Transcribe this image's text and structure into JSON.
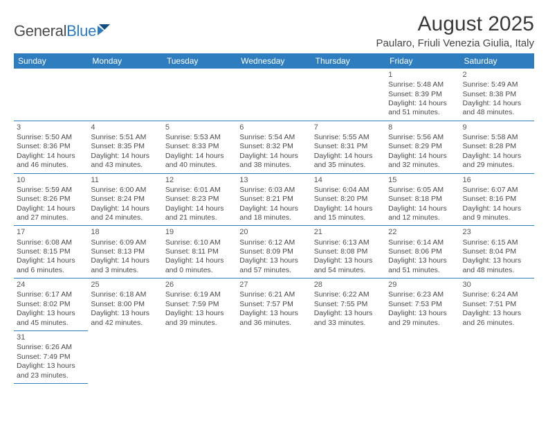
{
  "brand": {
    "name_part1": "General",
    "name_part2": "Blue"
  },
  "title": "August 2025",
  "location": "Paularo, Friuli Venezia Giulia, Italy",
  "colors": {
    "header_bg": "#2e7ebf",
    "header_fg": "#ffffff",
    "border": "#2e7ebf"
  },
  "day_headers": [
    "Sunday",
    "Monday",
    "Tuesday",
    "Wednesday",
    "Thursday",
    "Friday",
    "Saturday"
  ],
  "weeks": [
    [
      null,
      null,
      null,
      null,
      null,
      {
        "n": "1",
        "sr": "Sunrise: 5:48 AM",
        "ss": "Sunset: 8:39 PM",
        "d1": "Daylight: 14 hours",
        "d2": "and 51 minutes."
      },
      {
        "n": "2",
        "sr": "Sunrise: 5:49 AM",
        "ss": "Sunset: 8:38 PM",
        "d1": "Daylight: 14 hours",
        "d2": "and 48 minutes."
      }
    ],
    [
      {
        "n": "3",
        "sr": "Sunrise: 5:50 AM",
        "ss": "Sunset: 8:36 PM",
        "d1": "Daylight: 14 hours",
        "d2": "and 46 minutes."
      },
      {
        "n": "4",
        "sr": "Sunrise: 5:51 AM",
        "ss": "Sunset: 8:35 PM",
        "d1": "Daylight: 14 hours",
        "d2": "and 43 minutes."
      },
      {
        "n": "5",
        "sr": "Sunrise: 5:53 AM",
        "ss": "Sunset: 8:33 PM",
        "d1": "Daylight: 14 hours",
        "d2": "and 40 minutes."
      },
      {
        "n": "6",
        "sr": "Sunrise: 5:54 AM",
        "ss": "Sunset: 8:32 PM",
        "d1": "Daylight: 14 hours",
        "d2": "and 38 minutes."
      },
      {
        "n": "7",
        "sr": "Sunrise: 5:55 AM",
        "ss": "Sunset: 8:31 PM",
        "d1": "Daylight: 14 hours",
        "d2": "and 35 minutes."
      },
      {
        "n": "8",
        "sr": "Sunrise: 5:56 AM",
        "ss": "Sunset: 8:29 PM",
        "d1": "Daylight: 14 hours",
        "d2": "and 32 minutes."
      },
      {
        "n": "9",
        "sr": "Sunrise: 5:58 AM",
        "ss": "Sunset: 8:28 PM",
        "d1": "Daylight: 14 hours",
        "d2": "and 29 minutes."
      }
    ],
    [
      {
        "n": "10",
        "sr": "Sunrise: 5:59 AM",
        "ss": "Sunset: 8:26 PM",
        "d1": "Daylight: 14 hours",
        "d2": "and 27 minutes."
      },
      {
        "n": "11",
        "sr": "Sunrise: 6:00 AM",
        "ss": "Sunset: 8:24 PM",
        "d1": "Daylight: 14 hours",
        "d2": "and 24 minutes."
      },
      {
        "n": "12",
        "sr": "Sunrise: 6:01 AM",
        "ss": "Sunset: 8:23 PM",
        "d1": "Daylight: 14 hours",
        "d2": "and 21 minutes."
      },
      {
        "n": "13",
        "sr": "Sunrise: 6:03 AM",
        "ss": "Sunset: 8:21 PM",
        "d1": "Daylight: 14 hours",
        "d2": "and 18 minutes."
      },
      {
        "n": "14",
        "sr": "Sunrise: 6:04 AM",
        "ss": "Sunset: 8:20 PM",
        "d1": "Daylight: 14 hours",
        "d2": "and 15 minutes."
      },
      {
        "n": "15",
        "sr": "Sunrise: 6:05 AM",
        "ss": "Sunset: 8:18 PM",
        "d1": "Daylight: 14 hours",
        "d2": "and 12 minutes."
      },
      {
        "n": "16",
        "sr": "Sunrise: 6:07 AM",
        "ss": "Sunset: 8:16 PM",
        "d1": "Daylight: 14 hours",
        "d2": "and 9 minutes."
      }
    ],
    [
      {
        "n": "17",
        "sr": "Sunrise: 6:08 AM",
        "ss": "Sunset: 8:15 PM",
        "d1": "Daylight: 14 hours",
        "d2": "and 6 minutes."
      },
      {
        "n": "18",
        "sr": "Sunrise: 6:09 AM",
        "ss": "Sunset: 8:13 PM",
        "d1": "Daylight: 14 hours",
        "d2": "and 3 minutes."
      },
      {
        "n": "19",
        "sr": "Sunrise: 6:10 AM",
        "ss": "Sunset: 8:11 PM",
        "d1": "Daylight: 14 hours",
        "d2": "and 0 minutes."
      },
      {
        "n": "20",
        "sr": "Sunrise: 6:12 AM",
        "ss": "Sunset: 8:09 PM",
        "d1": "Daylight: 13 hours",
        "d2": "and 57 minutes."
      },
      {
        "n": "21",
        "sr": "Sunrise: 6:13 AM",
        "ss": "Sunset: 8:08 PM",
        "d1": "Daylight: 13 hours",
        "d2": "and 54 minutes."
      },
      {
        "n": "22",
        "sr": "Sunrise: 6:14 AM",
        "ss": "Sunset: 8:06 PM",
        "d1": "Daylight: 13 hours",
        "d2": "and 51 minutes."
      },
      {
        "n": "23",
        "sr": "Sunrise: 6:15 AM",
        "ss": "Sunset: 8:04 PM",
        "d1": "Daylight: 13 hours",
        "d2": "and 48 minutes."
      }
    ],
    [
      {
        "n": "24",
        "sr": "Sunrise: 6:17 AM",
        "ss": "Sunset: 8:02 PM",
        "d1": "Daylight: 13 hours",
        "d2": "and 45 minutes."
      },
      {
        "n": "25",
        "sr": "Sunrise: 6:18 AM",
        "ss": "Sunset: 8:00 PM",
        "d1": "Daylight: 13 hours",
        "d2": "and 42 minutes."
      },
      {
        "n": "26",
        "sr": "Sunrise: 6:19 AM",
        "ss": "Sunset: 7:59 PM",
        "d1": "Daylight: 13 hours",
        "d2": "and 39 minutes."
      },
      {
        "n": "27",
        "sr": "Sunrise: 6:21 AM",
        "ss": "Sunset: 7:57 PM",
        "d1": "Daylight: 13 hours",
        "d2": "and 36 minutes."
      },
      {
        "n": "28",
        "sr": "Sunrise: 6:22 AM",
        "ss": "Sunset: 7:55 PM",
        "d1": "Daylight: 13 hours",
        "d2": "and 33 minutes."
      },
      {
        "n": "29",
        "sr": "Sunrise: 6:23 AM",
        "ss": "Sunset: 7:53 PM",
        "d1": "Daylight: 13 hours",
        "d2": "and 29 minutes."
      },
      {
        "n": "30",
        "sr": "Sunrise: 6:24 AM",
        "ss": "Sunset: 7:51 PM",
        "d1": "Daylight: 13 hours",
        "d2": "and 26 minutes."
      }
    ],
    [
      {
        "n": "31",
        "sr": "Sunrise: 6:26 AM",
        "ss": "Sunset: 7:49 PM",
        "d1": "Daylight: 13 hours",
        "d2": "and 23 minutes."
      },
      null,
      null,
      null,
      null,
      null,
      null
    ]
  ]
}
